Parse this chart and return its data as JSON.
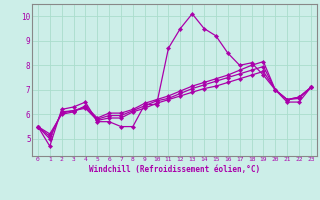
{
  "xlabel": "Windchill (Refroidissement éolien,°C)",
  "bg_color": "#cceee8",
  "line_color": "#aa00aa",
  "grid_color": "#aaddcc",
  "xlim": [
    -0.5,
    23.5
  ],
  "ylim": [
    4.3,
    10.5
  ],
  "yticks": [
    5,
    6,
    7,
    8,
    9,
    10
  ],
  "xticks": [
    0,
    1,
    2,
    3,
    4,
    5,
    6,
    7,
    8,
    9,
    10,
    11,
    12,
    13,
    14,
    15,
    16,
    17,
    18,
    19,
    20,
    21,
    22,
    23
  ],
  "series": [
    [
      5.5,
      4.7,
      6.2,
      6.3,
      6.5,
      5.7,
      5.7,
      5.5,
      5.5,
      6.4,
      6.4,
      8.7,
      9.5,
      10.1,
      9.5,
      9.2,
      8.5,
      8.0,
      8.1,
      7.6,
      7.0,
      6.5,
      6.5,
      7.1
    ],
    [
      5.5,
      5.0,
      6.1,
      6.15,
      6.25,
      5.75,
      5.85,
      5.85,
      6.1,
      6.25,
      6.45,
      6.6,
      6.75,
      6.9,
      7.05,
      7.15,
      7.3,
      7.45,
      7.6,
      7.75,
      7.0,
      6.6,
      6.65,
      7.1
    ],
    [
      5.5,
      5.1,
      6.05,
      6.15,
      6.3,
      5.8,
      5.95,
      5.95,
      6.15,
      6.35,
      6.55,
      6.65,
      6.85,
      7.05,
      7.2,
      7.35,
      7.5,
      7.65,
      7.8,
      7.95,
      7.0,
      6.6,
      6.7,
      7.1
    ],
    [
      5.5,
      5.2,
      6.0,
      6.1,
      6.35,
      5.85,
      6.05,
      6.05,
      6.2,
      6.45,
      6.6,
      6.75,
      6.95,
      7.15,
      7.3,
      7.45,
      7.6,
      7.8,
      8.0,
      8.15,
      7.0,
      6.6,
      6.7,
      7.1
    ]
  ]
}
